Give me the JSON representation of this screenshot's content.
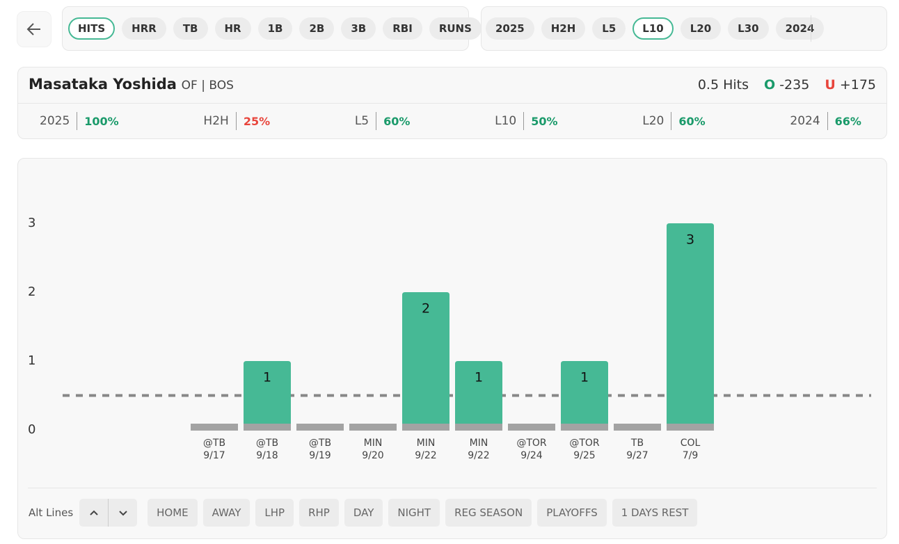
{
  "stat_tabs": {
    "items": [
      "HITS",
      "HRR",
      "TB",
      "HR",
      "1B",
      "2B",
      "3B",
      "RBI",
      "RUNS"
    ],
    "selected": 0
  },
  "period_tabs": {
    "items": [
      "2025",
      "H2H",
      "L5",
      "L10",
      "L20",
      "L30",
      "2024"
    ],
    "selected": 3
  },
  "player": {
    "name": "Masataka Yoshida",
    "position": "OF | BOS",
    "line": "0.5 Hits",
    "over_label": "O",
    "over_odds": "-235",
    "under_label": "U",
    "under_odds": "+175"
  },
  "hit_rates": [
    {
      "period": "2025",
      "rate": "100%",
      "color": "#1a9a6a"
    },
    {
      "period": "H2H",
      "rate": "25%",
      "color": "#e8453c"
    },
    {
      "period": "L5",
      "rate": "60%",
      "color": "#1a9a6a"
    },
    {
      "period": "L10",
      "rate": "50%",
      "color": "#1a9a6a"
    },
    {
      "period": "L20",
      "rate": "60%",
      "color": "#1a9a6a"
    },
    {
      "period": "2024",
      "rate": "66%",
      "color": "#1a9a6a"
    }
  ],
  "chart_data": {
    "type": "bar",
    "categories": [
      "@TB",
      "@TB",
      "@TB",
      "MIN",
      "MIN",
      "MIN",
      "@TOR",
      "@TOR",
      "TB",
      "COL"
    ],
    "dates": [
      "9/17",
      "9/18",
      "9/19",
      "9/20",
      "9/22",
      "9/22",
      "9/24",
      "9/25",
      "9/27",
      "7/9"
    ],
    "values": [
      0,
      1,
      0,
      0,
      2,
      1,
      0,
      1,
      0,
      3
    ],
    "color": "#46b995",
    "base_color": "#a3a3a3",
    "line": 0.5,
    "ylim": [
      0,
      3
    ],
    "yticks": [
      0,
      1,
      2,
      3
    ]
  },
  "filters": {
    "label": "Alt Lines",
    "buttons": [
      "HOME",
      "AWAY",
      "LHP",
      "RHP",
      "DAY",
      "NIGHT",
      "REG SEASON",
      "PLAYOFFS",
      "1 DAYS REST"
    ]
  }
}
